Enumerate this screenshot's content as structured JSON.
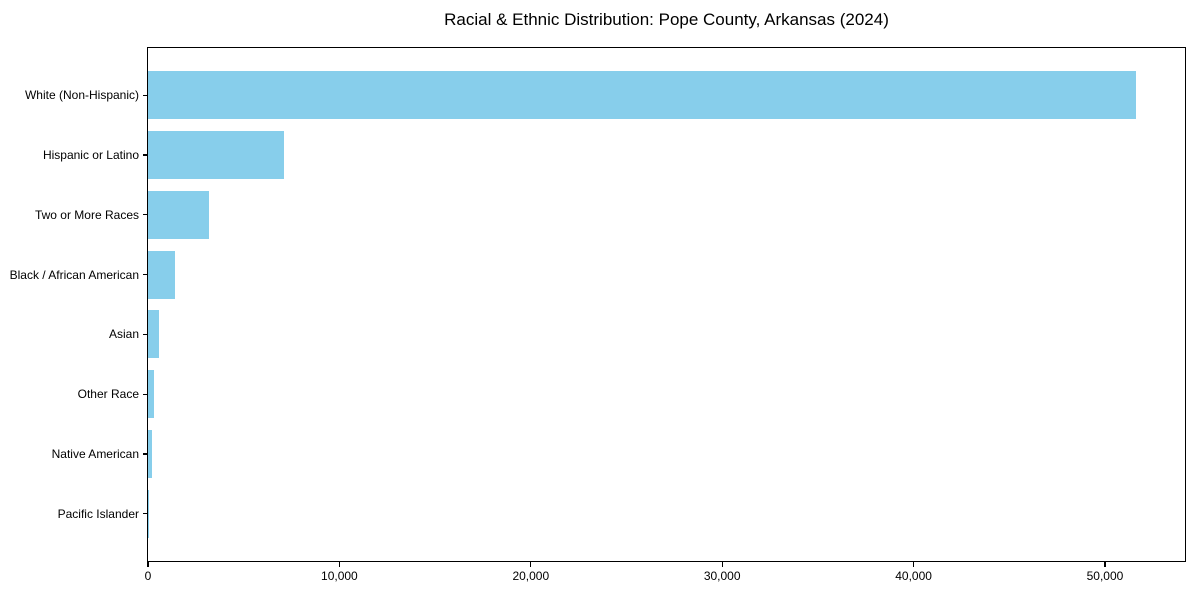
{
  "chart_data": {
    "type": "bar",
    "orientation": "horizontal",
    "title": "Racial & Ethnic Distribution: Pope County, Arkansas (2024)",
    "categories": [
      "White (Non-Hispanic)",
      "Hispanic or Latino",
      "Two or More Races",
      "Black / African American",
      "Asian",
      "Other Race",
      "Native American",
      "Pacific Islander"
    ],
    "values": [
      51600,
      7100,
      3200,
      1400,
      570,
      310,
      210,
      30
    ],
    "xlabel": "",
    "ylabel": "",
    "xlim": [
      0,
      54180
    ],
    "x_ticks": [
      0,
      10000,
      20000,
      30000,
      40000,
      50000
    ],
    "x_tick_labels": [
      "0",
      "10,000",
      "20,000",
      "30,000",
      "40,000",
      "50,000"
    ],
    "grid": false,
    "legend_position": "none",
    "bar_color": "#87CEEB",
    "axis_color": "#000000",
    "text_color": "#000000",
    "background_color": "#FFFFFF",
    "bar_width_fraction": 0.8
  }
}
